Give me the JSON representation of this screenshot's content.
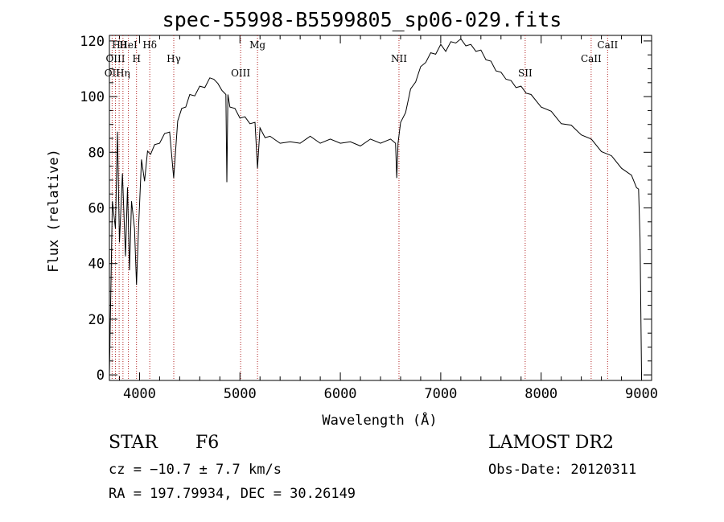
{
  "title": "spec-55998-B5599805_sp06-029.fits",
  "chart_data": {
    "type": "line",
    "xlabel": "Wavelength (Å)",
    "ylabel": "Flux (relative)",
    "xlim": [
      3700,
      9100
    ],
    "ylim": [
      -2,
      122
    ],
    "xticks": [
      4000,
      5000,
      6000,
      7000,
      8000,
      9000
    ],
    "yticks": [
      0,
      20,
      40,
      60,
      80,
      100,
      120
    ],
    "grid": false,
    "series": [
      {
        "x": [
          3700,
          3730,
          3760,
          3780,
          3800,
          3830,
          3860,
          3880,
          3900,
          3920,
          3950,
          3970,
          3990,
          4020,
          4050,
          4080,
          4110,
          4150,
          4200,
          4250,
          4300,
          4340,
          4380,
          4420,
          4460,
          4500,
          4550,
          4600,
          4650,
          4700,
          4740,
          4780,
          4820,
          4860,
          4870,
          4880,
          4900,
          4950,
          5000,
          5050,
          5100,
          5150,
          5175,
          5200,
          5250,
          5300,
          5400,
          5500,
          5600,
          5700,
          5800,
          5900,
          6000,
          6100,
          6200,
          6300,
          6400,
          6500,
          6550,
          6562,
          6575,
          6600,
          6650,
          6700,
          6750,
          6800,
          6850,
          6900,
          6950,
          7000,
          7050,
          7100,
          7150,
          7200,
          7250,
          7300,
          7350,
          7400,
          7450,
          7500,
          7550,
          7600,
          7650,
          7700,
          7750,
          7800,
          7850,
          7900,
          8000,
          8100,
          8200,
          8300,
          8400,
          8500,
          8600,
          8700,
          8800,
          8900,
          8950,
          8970,
          8985,
          9000
        ],
        "y": [
          0,
          60,
          55,
          85,
          50,
          70,
          45,
          65,
          40,
          60,
          55,
          30,
          55,
          75,
          72,
          78,
          80,
          82,
          84,
          86,
          88,
          70,
          92,
          95,
          97,
          100,
          101,
          103,
          104,
          106,
          107,
          104,
          103,
          100,
          70,
          100,
          97,
          95,
          93,
          92,
          91,
          90,
          75,
          88,
          86,
          85,
          84,
          83,
          84,
          85,
          84,
          84,
          84,
          83,
          83,
          84,
          84,
          84,
          84,
          70,
          84,
          90,
          95,
          102,
          106,
          110,
          113,
          115,
          116,
          118,
          117,
          119,
          120,
          120,
          119,
          118,
          117,
          116,
          114,
          112,
          110,
          108,
          107,
          105,
          104,
          103,
          102,
          100,
          97,
          94,
          91,
          89,
          87,
          84,
          81,
          78,
          75,
          71,
          68,
          66,
          50,
          0
        ]
      }
    ],
    "lines": [
      {
        "label": "Hθ",
        "x": 3797
      },
      {
        "label": "H",
        "x": 3970
      },
      {
        "label": "OII",
        "x": 3727
      },
      {
        "label": "HeI",
        "x": 3889
      },
      {
        "label": "OIII",
        "x": 3760
      },
      {
        "label": "Hη",
        "x": 3835
      },
      {
        "label": "Hδ",
        "x": 4102
      },
      {
        "label": "Hγ",
        "x": 4341
      },
      {
        "label": "OIII",
        "x": 5007
      },
      {
        "label": "Mg",
        "x": 5175
      },
      {
        "label": "NII",
        "x": 6584
      },
      {
        "label": "SII",
        "x": 7841
      },
      {
        "label": "CaII",
        "x": 8662
      },
      {
        "label": "CaII",
        "x": 8498
      }
    ]
  },
  "info": {
    "object_type": "STAR",
    "subclass": "F6",
    "survey": "LAMOST DR2",
    "cz": "cz = −10.7 ± 7.7 km/s",
    "obs_date": "Obs-Date: 20120311",
    "radec": "RA = 197.79934, DEC =  30.26149"
  }
}
